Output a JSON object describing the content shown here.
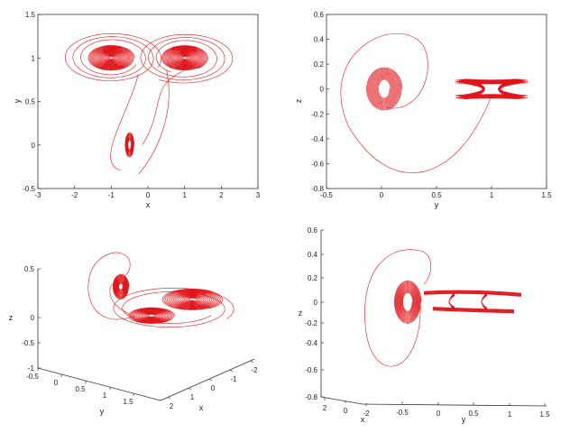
{
  "figure": {
    "line_color": "#e0161b"
  },
  "chart_data": [
    {
      "type": "line",
      "panel": "top-left",
      "description": "2D projection of chaotic attractor onto x-y plane",
      "xlabel": "x",
      "ylabel": "y",
      "xlim": [
        -3,
        3
      ],
      "ylim": [
        -0.5,
        1.5
      ],
      "xticks": [
        "-3",
        "-2",
        "-1",
        "0",
        "1",
        "2",
        "3"
      ],
      "yticks": [
        "-0.5",
        "0",
        "0.5",
        "1",
        "1.5"
      ],
      "features": {
        "focus_left": [
          -1.0,
          1.0
        ],
        "focus_right": [
          1.0,
          1.0
        ],
        "focus_lower": [
          -0.5,
          0.0
        ]
      }
    },
    {
      "type": "line",
      "panel": "top-right",
      "description": "2D projection of chaotic attractor onto y-z plane",
      "xlabel": "y",
      "ylabel": "z",
      "xlim": [
        -0.5,
        1.5
      ],
      "ylim": [
        -0.8,
        0.6
      ],
      "xticks": [
        "-0.5",
        "0",
        "0.5",
        "1",
        "1.5"
      ],
      "yticks": [
        "-0.8",
        "-0.6",
        "-0.4",
        "-0.2",
        "0",
        "0.2",
        "0.4",
        "0.6"
      ],
      "features": {
        "focus": [
          0.0,
          0.0
        ],
        "bowtie_center": [
          1.0,
          0.0
        ],
        "bowtie_z_extent": [
          -0.08,
          0.08
        ]
      }
    },
    {
      "type": "line",
      "panel": "bottom-left",
      "description": "3D view of chaotic attractor",
      "xlabel": "x",
      "ylabel": "y",
      "zlabel": "z",
      "xticks": [
        "2",
        "1",
        "0",
        "-1",
        "-2"
      ],
      "yticks": [
        "-0.5",
        "0",
        "0.5",
        "1",
        "1.5"
      ],
      "zticks": [
        "-1",
        "-0.5",
        "0",
        "0.5"
      ]
    },
    {
      "type": "line",
      "panel": "bottom-right",
      "description": "3D view of chaotic attractor",
      "xlabel": "x",
      "ylabel": "y",
      "zlabel": "z",
      "xticks": [
        "2",
        "0",
        "-2"
      ],
      "yticks": [
        "-0.5",
        "0",
        "0.5",
        "1",
        "1.5"
      ],
      "zticks": [
        "-0.8",
        "-0.6",
        "-0.4",
        "-0.2",
        "0",
        "0.2",
        "0.4",
        "0.6"
      ]
    }
  ]
}
